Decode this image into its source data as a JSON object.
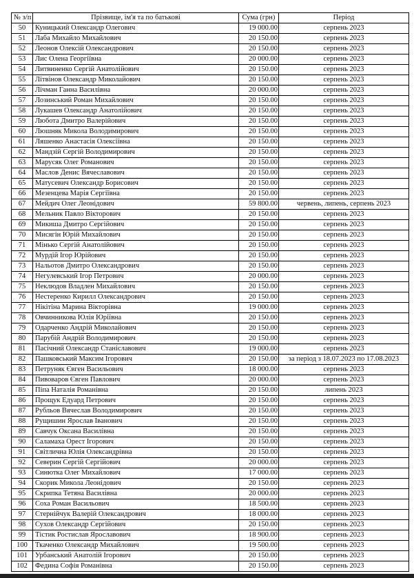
{
  "header": {
    "num": "№ з/п",
    "name": "Прізвище, ім'я та по батькові",
    "sum": "Сума (грн)",
    "period": "Період"
  },
  "rows": [
    [
      "50",
      "Куницький Олександр Олегович",
      "19 000.00",
      "серпень 2023"
    ],
    [
      "51",
      "Лаба Михайло Михайлович",
      "20 150.00",
      "серпень 2023"
    ],
    [
      "52",
      "Леонов Олексій Олександрович",
      "20 150.00",
      "серпень 2023"
    ],
    [
      "53",
      "Лис Олена Георгіївна",
      "20 000.00",
      "серпень 2023"
    ],
    [
      "54",
      "Литвиненко Сергій Анатолійович",
      "20 150.00",
      "серпень 2023"
    ],
    [
      "55",
      "Літвінов Олександр Миколайович",
      "20 150.00",
      "серпень 2023"
    ],
    [
      "56",
      "Лічман Ганна Василівна",
      "20 000.00",
      "серпень 2023"
    ],
    [
      "57",
      "Лозинський Роман Михайлович",
      "20 150.00",
      "серпень 2023"
    ],
    [
      "58",
      "Лукашев Олександр Анатолійович",
      "20 150.00",
      "серпень 2023"
    ],
    [
      "59",
      "Любота Дмитро Валерійович",
      "20 150.00",
      "серпень 2023"
    ],
    [
      "60",
      "Люшняк Микола Володимирович",
      "20 150.00",
      "серпень 2023"
    ],
    [
      "61",
      "Ляшенко Анастасія Олексіївна",
      "20 150.00",
      "серпень 2023"
    ],
    [
      "62",
      "Мандзій Сергій Володимирович",
      "20 150.00",
      "серпень 2023"
    ],
    [
      "63",
      "Марусяк Олег Романович",
      "20 150.00",
      "серпень 2023"
    ],
    [
      "64",
      "Маслов Денис Вячеславович",
      "20 150.00",
      "серпень 2023"
    ],
    [
      "65",
      "Матусевич Олександр Борисович",
      "20 150.00",
      "серпень 2023"
    ],
    [
      "66",
      "Мезенцева Марія Сергіївна",
      "20 150.00",
      "серпень 2023"
    ],
    [
      "67",
      "Мейдич Олег Леонідович",
      "59 800.00",
      "червень, липень, серпень 2023"
    ],
    [
      "68",
      "Мельник Павло Вікторович",
      "20 150.00",
      "серпень 2023"
    ],
    [
      "69",
      "Микиша Дмитро Сергійович",
      "20 150.00",
      "серпень 2023"
    ],
    [
      "70",
      "Мисягін Юрій Михайлович",
      "20 150.00",
      "серпень 2023"
    ],
    [
      "71",
      "Мінько Сергій Анатолійович",
      "20 150.00",
      "серпень 2023"
    ],
    [
      "72",
      "Мурдій Ігор Юрійович",
      "20 150.00",
      "серпень 2023"
    ],
    [
      "73",
      "Нальотов Дмитро Олександрович",
      "20 150.00",
      "серпень 2023"
    ],
    [
      "74",
      "Негулевський Ігор Петрович",
      "20 000.00",
      "серпень 2023"
    ],
    [
      "75",
      "Неклюдов Владлен Михайлович",
      "20 150.00",
      "серпень 2023"
    ],
    [
      "76",
      "Нестеренко Кирилл Олександрович",
      "20 150.00",
      "серпень 2023"
    ],
    [
      "77",
      "Нікітіна Марина Вікторівна",
      "19 000.00",
      "серпень 2023"
    ],
    [
      "78",
      "Овчинникова Юлія Юріївна",
      "20 150.00",
      "серпень 2023"
    ],
    [
      "79",
      "Одарченко Андрій Миколайович",
      "20 150.00",
      "серпень 2023"
    ],
    [
      "80",
      "Парубій Андрій Володимирович",
      "20 150.00",
      "серпень 2023"
    ],
    [
      "81",
      "Пасічний Олександр Станіславович",
      "19 000.00",
      "серпень 2023"
    ],
    [
      "82",
      "Пашковський Максим Ігорович",
      "20 150.00",
      "за період з 18.07.2023 по 17.08.2023"
    ],
    [
      "83",
      "Петруняк Євген Васильович",
      "18 000.00",
      "серпень 2023"
    ],
    [
      "84",
      "Пивоваров Євген Павлович",
      "20 000.00",
      "серпень 2023"
    ],
    [
      "85",
      "Піпа Наталія Романівна",
      "20 150.00",
      "липень 2023"
    ],
    [
      "86",
      "Прощук Едуард Петрович",
      "20 150.00",
      "серпень 2023"
    ],
    [
      "87",
      "Рубльов Вячеслав Володимирович",
      "20 150.00",
      "серпень 2023"
    ],
    [
      "88",
      "Рущишин Ярослав Іванович",
      "20 150.00",
      "серпень 2023"
    ],
    [
      "89",
      "Савчук Оксана Василівна",
      "20 150.00",
      "серпень 2023"
    ],
    [
      "90",
      "Саламаха Орест Ігорович",
      "20 150.00",
      "серпень 2023"
    ],
    [
      "91",
      "Світлична Юлія Олександрівна",
      "20 150.00",
      "серпень 2023"
    ],
    [
      "92",
      "Северин Сергій Сергійович",
      "20 000.00",
      "серпень 2023"
    ],
    [
      "93",
      "Синютка Олег Михайлович",
      "17 000.00",
      "серпень 2023"
    ],
    [
      "94",
      "Скорик Микола Леонідович",
      "20 150.00",
      "серпень 2023"
    ],
    [
      "95",
      "Скрипка Тетяна Василівна",
      "20 000.00",
      "серпень 2023"
    ],
    [
      "96",
      "Соха Роман Васильович",
      "18 500.00",
      "серпень 2023"
    ],
    [
      "97",
      "Стернійчук Валерій Олександрович",
      "18 000.00",
      "серпень 2023"
    ],
    [
      "98",
      "Сухов Олександр Сергійович",
      "20 150.00",
      "серпень 2023"
    ],
    [
      "99",
      "Тістик Ростислав Ярославович",
      "18 900.00",
      "серпень 2023"
    ],
    [
      "100",
      "Ткаченко Олександр Михайлович",
      "19 500.00",
      "серпень 2023"
    ],
    [
      "101",
      "Урбанський Анатолій Ігорович",
      "20 150.00",
      "серпень 2023"
    ],
    [
      "102",
      "Федина Софія Романівна",
      "20 150.00",
      "серпень 2023"
    ]
  ]
}
